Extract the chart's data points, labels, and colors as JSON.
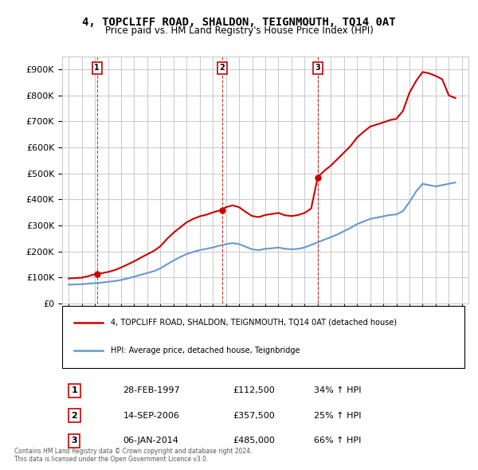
{
  "title": "4, TOPCLIFF ROAD, SHALDON, TEIGNMOUTH, TQ14 0AT",
  "subtitle": "Price paid vs. HM Land Registry's House Price Index (HPI)",
  "xlabel": "",
  "ylabel": "",
  "ylim": [
    0,
    950000
  ],
  "yticks": [
    0,
    100000,
    200000,
    300000,
    400000,
    500000,
    600000,
    700000,
    800000,
    900000
  ],
  "ytick_labels": [
    "£0",
    "£100K",
    "£200K",
    "£300K",
    "£400K",
    "£500K",
    "£600K",
    "£700K",
    "£800K",
    "£900K"
  ],
  "background_color": "#ffffff",
  "grid_color": "#cccccc",
  "sale_color": "#cc0000",
  "hpi_color": "#6699cc",
  "sale_label": "4, TOPCLIFF ROAD, SHALDON, TEIGNMOUTH, TQ14 0AT (detached house)",
  "hpi_label": "HPI: Average price, detached house, Teignbridge",
  "transactions": [
    {
      "date": "1997-02-28",
      "price": 112500,
      "label": "1",
      "pct": "34% ↑ HPI"
    },
    {
      "date": "2006-09-14",
      "price": 357500,
      "label": "2",
      "pct": "25% ↑ HPI"
    },
    {
      "date": "2014-01-06",
      "price": 485000,
      "label": "3",
      "pct": "66% ↑ HPI"
    }
  ],
  "table_rows": [
    {
      "num": "1",
      "date": "28-FEB-1997",
      "price": "£112,500",
      "pct": "34% ↑ HPI"
    },
    {
      "num": "2",
      "date": "14-SEP-2006",
      "price": "£357,500",
      "pct": "25% ↑ HPI"
    },
    {
      "num": "3",
      "date": "06-JAN-2014",
      "price": "£485,000",
      "pct": "66% ↑ HPI"
    }
  ],
  "footer": "Contains HM Land Registry data © Crown copyright and database right 2024.\nThis data is licensed under the Open Government Licence v3.0.",
  "hpi_data": {
    "years": [
      1995,
      1995.5,
      1996,
      1996.5,
      1997,
      1997.5,
      1998,
      1998.5,
      1999,
      1999.5,
      2000,
      2000.5,
      2001,
      2001.5,
      2002,
      2002.5,
      2003,
      2003.5,
      2004,
      2004.5,
      2005,
      2005.5,
      2006,
      2006.5,
      2007,
      2007.5,
      2008,
      2008.5,
      2009,
      2009.5,
      2010,
      2010.5,
      2011,
      2011.5,
      2012,
      2012.5,
      2013,
      2013.5,
      2014,
      2014.5,
      2015,
      2015.5,
      2016,
      2016.5,
      2017,
      2017.5,
      2018,
      2018.5,
      2019,
      2019.5,
      2020,
      2020.5,
      2021,
      2021.5,
      2022,
      2022.5,
      2023,
      2023.5,
      2024,
      2024.5
    ],
    "values": [
      72000,
      73000,
      74000,
      76000,
      78000,
      80000,
      83000,
      86000,
      90000,
      96000,
      103000,
      110000,
      117000,
      124000,
      135000,
      150000,
      165000,
      178000,
      190000,
      198000,
      205000,
      210000,
      215000,
      222000,
      228000,
      232000,
      228000,
      218000,
      208000,
      205000,
      210000,
      212000,
      215000,
      210000,
      208000,
      210000,
      215000,
      225000,
      235000,
      245000,
      255000,
      265000,
      278000,
      290000,
      305000,
      315000,
      325000,
      330000,
      335000,
      340000,
      342000,
      355000,
      390000,
      430000,
      460000,
      455000,
      450000,
      455000,
      460000,
      465000
    ]
  },
  "sale_line_data": {
    "years": [
      1995,
      1995.5,
      1996,
      1996.5,
      1997,
      1997.5,
      1998,
      1998.5,
      1999,
      1999.5,
      2000,
      2000.5,
      2001,
      2001.5,
      2002,
      2002.5,
      2003,
      2003.5,
      2004,
      2004.5,
      2005,
      2005.5,
      2006,
      2006.5,
      2007,
      2007.5,
      2008,
      2008.5,
      2009,
      2009.5,
      2010,
      2010.5,
      2011,
      2011.5,
      2012,
      2012.5,
      2013,
      2013.5,
      2014,
      2014.5,
      2015,
      2015.5,
      2016,
      2016.5,
      2017,
      2017.5,
      2018,
      2018.5,
      2019,
      2019.5,
      2020,
      2020.5,
      2021,
      2021.5,
      2022,
      2022.5,
      2023,
      2023.5,
      2024,
      2024.5
    ],
    "values": [
      96000,
      97500,
      99000,
      105000,
      112500,
      116000,
      121000,
      128000,
      138000,
      150000,
      162000,
      176000,
      189000,
      202000,
      220000,
      248000,
      272000,
      292000,
      312000,
      325000,
      335000,
      341000,
      350000,
      357500,
      370000,
      377000,
      370000,
      352000,
      336000,
      332000,
      340000,
      344000,
      348000,
      339000,
      336000,
      340000,
      348000,
      365000,
      485000,
      510000,
      530000,
      555000,
      580000,
      605000,
      638000,
      660000,
      680000,
      688000,
      696000,
      705000,
      710000,
      740000,
      810000,
      855000,
      890000,
      885000,
      875000,
      862000,
      800000,
      790000
    ]
  }
}
